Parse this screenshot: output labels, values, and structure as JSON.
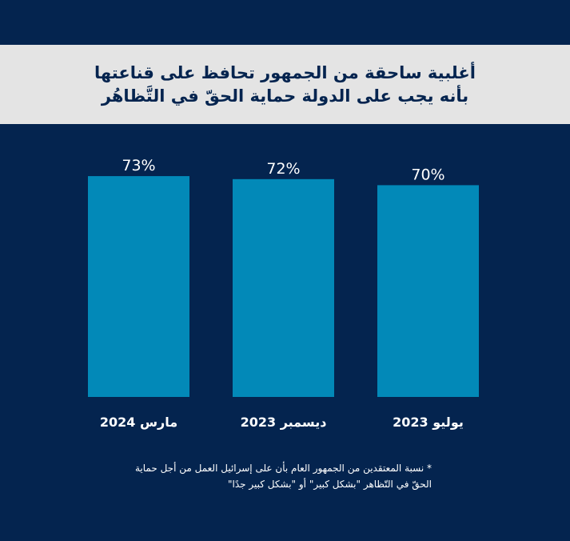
{
  "title": {
    "line1": "أغلبية ساحقة من الجمهور تحافظ على قناعتها",
    "line2": "بأنه يجب على الدولة حماية الحقّ في التَّظاهُر"
  },
  "colors": {
    "background": "#04244f",
    "title_band": "#e4e4e4",
    "title_text": "#04244f",
    "bar": "#0289b8",
    "text": "#ffffff"
  },
  "chart_data": {
    "type": "bar",
    "categories": [
      "مارس 2024",
      "ديسمبر 2023",
      "يوليو 2023"
    ],
    "values": [
      73,
      72,
      70
    ],
    "data_labels": [
      "73%",
      "72%",
      "70%"
    ],
    "title": "",
    "xlabel": "",
    "ylabel": "",
    "ylim": [
      0,
      100
    ],
    "grid": false,
    "legend": "none"
  },
  "footnote": {
    "line1": "* نسبة المعتقدين من الجمهور العام بأن على إسرائيل العمل من أجل حماية",
    "line2": "الحقّ في التّظاهر \"بشكل كبير\" أو \"بشكل كبير جدًا\""
  }
}
